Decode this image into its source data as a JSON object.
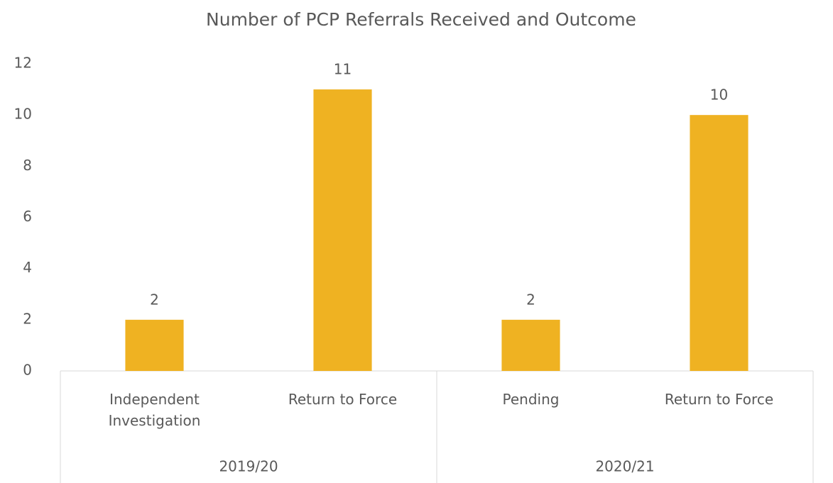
{
  "chart_data": {
    "type": "bar",
    "title": "Number of PCP Referrals Received and Outcome",
    "groups": [
      {
        "label": "2019/20",
        "categories": [
          "Independent Investigation",
          "Return to Force"
        ],
        "values": [
          2,
          11
        ]
      },
      {
        "label": "2020/21",
        "categories": [
          "Pending",
          "Return to Force"
        ],
        "values": [
          2,
          10
        ]
      }
    ],
    "color": "#efb222",
    "ylim": [
      0,
      12
    ],
    "yticks": [
      0,
      2,
      4,
      6,
      8,
      10,
      12
    ],
    "grid": false,
    "data_labels": true
  }
}
